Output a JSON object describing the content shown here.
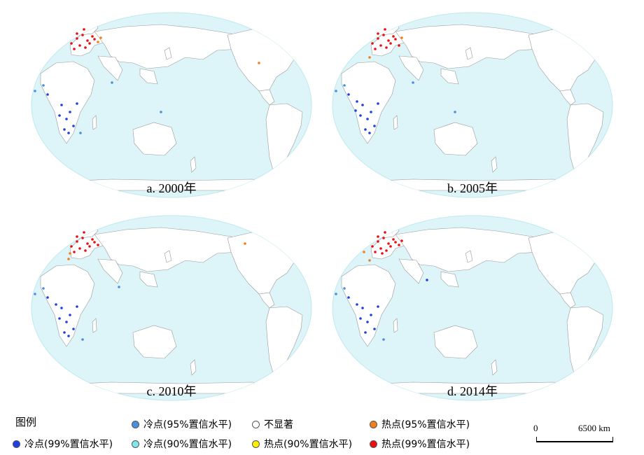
{
  "panels": [
    {
      "id": "a",
      "label": "a. 2000年"
    },
    {
      "id": "b",
      "label": "b. 2005年"
    },
    {
      "id": "c",
      "label": "c. 2010年"
    },
    {
      "id": "d",
      "label": "d. 2014年"
    }
  ],
  "legend": {
    "title": "图例",
    "items": [
      {
        "key": "cold95",
        "label": "冷点(95%置信水平)",
        "color": "#4b8fe0"
      },
      {
        "key": "insig",
        "label": "不显著",
        "color": "#ffffff"
      },
      {
        "key": "hot95",
        "label": "热点(95%置信水平)",
        "color": "#f07f1c"
      },
      {
        "key": "cold99",
        "label": "冷点(99%置信水平)",
        "color": "#1f3fe0"
      },
      {
        "key": "cold90",
        "label": "冷点(90%置信水平)",
        "color": "#7fe8ee"
      },
      {
        "key": "hot90",
        "label": "热点(90%置信水平)",
        "color": "#ffee00"
      },
      {
        "key": "hot99",
        "label": "热点(99%置信水平)",
        "color": "#e81010"
      }
    ]
  },
  "scalebar": {
    "start": "0",
    "end": "6500 km"
  },
  "colors": {
    "ocean": "#ddf5f8",
    "border": "#999999",
    "land": "#ffffff"
  }
}
